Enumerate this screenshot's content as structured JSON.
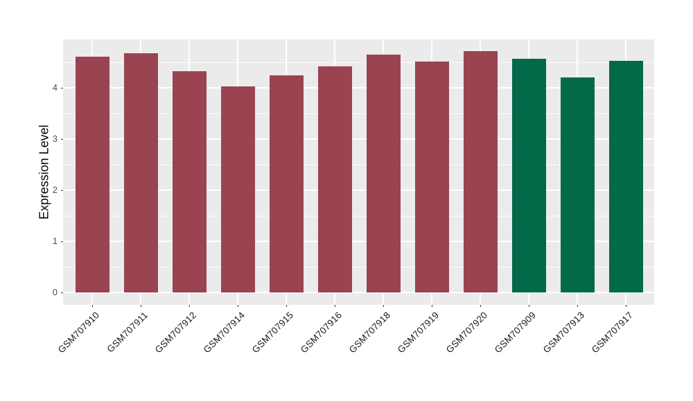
{
  "figure": {
    "background": "#FFFFFF",
    "panel_background": "#EBEBEB",
    "grid_color": "#FFFFFF",
    "tick_mark_color": "#333333",
    "y_tick_text_color": "#4D4D4D",
    "x_tick_text_color": "#1A1A1A"
  },
  "chart_data": {
    "type": "bar",
    "title": "",
    "xlabel": "",
    "ylabel": "Expression Level",
    "categories": [
      "GSM707910",
      "GSM707911",
      "GSM707912",
      "GSM707914",
      "GSM707915",
      "GSM707916",
      "GSM707918",
      "GSM707919",
      "GSM707920",
      "GSM707909",
      "GSM707913",
      "GSM707917"
    ],
    "values": [
      4.61,
      4.68,
      4.32,
      4.03,
      4.24,
      4.42,
      4.65,
      4.52,
      4.72,
      4.57,
      4.2,
      4.53
    ],
    "bar_colors": [
      "#9A4351",
      "#9A4351",
      "#9A4351",
      "#9A4351",
      "#9A4351",
      "#9A4351",
      "#9A4351",
      "#9A4351",
      "#9A4351",
      "#026949",
      "#026949",
      "#026949"
    ],
    "color_groups": {
      "red_group": {
        "color": "#9A4351",
        "categories": [
          "GSM707910",
          "GSM707911",
          "GSM707912",
          "GSM707914",
          "GSM707915",
          "GSM707916",
          "GSM707918",
          "GSM707919",
          "GSM707920"
        ]
      },
      "green_group": {
        "color": "#026949",
        "categories": [
          "GSM707909",
          "GSM707913",
          "GSM707917"
        ]
      }
    },
    "ylim": [
      0,
      4.95
    ],
    "yticks": [
      0,
      1,
      2,
      3,
      4
    ],
    "minor_yticks": [
      0.5,
      1.5,
      2.5,
      3.5,
      4.5
    ],
    "x_tick_angle_deg": 45,
    "grid": "horizontal major+minor, vertical major at category centers",
    "legend": null
  }
}
